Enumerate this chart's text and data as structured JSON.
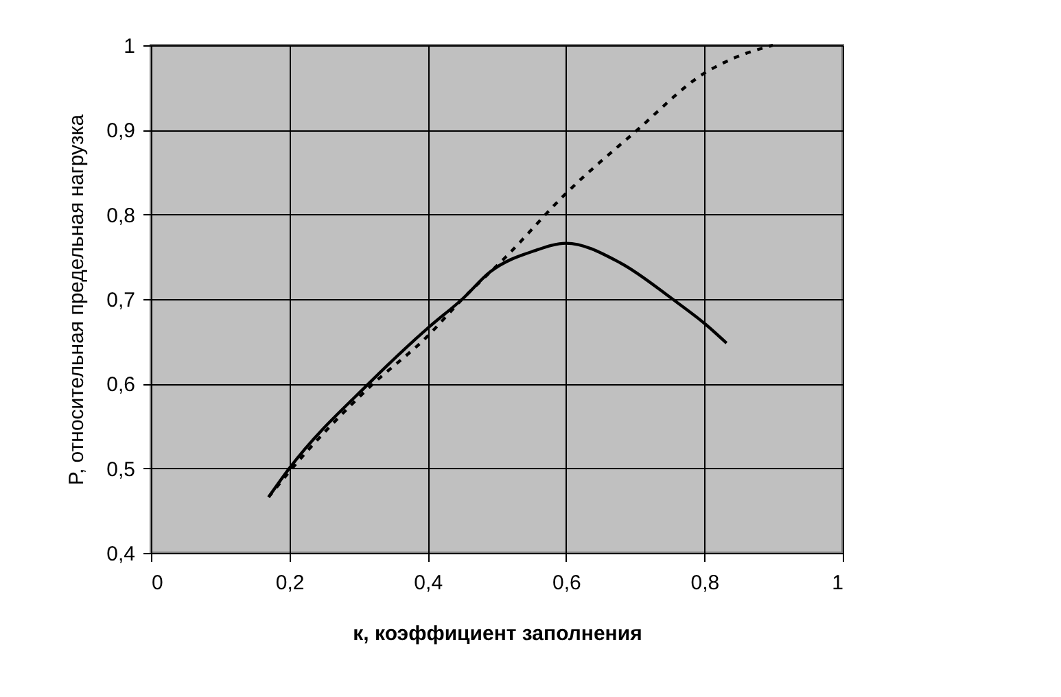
{
  "chart_data": {
    "type": "line",
    "xlabel": "к, коэффициент заполнения",
    "ylabel": "P, относительная предельная нагрузка",
    "xlim": [
      0,
      1
    ],
    "ylim": [
      0.4,
      1
    ],
    "xticks": [
      0,
      {
        "value": 0.2,
        "label": "0,2"
      },
      {
        "value": 0.4,
        "label": "0,4"
      },
      {
        "value": 0.6,
        "label": "0,6"
      },
      {
        "value": 0.8,
        "label": "0,8"
      },
      1
    ],
    "yticks": [
      {
        "value": 0.4,
        "label": "0,4"
      },
      {
        "value": 0.5,
        "label": "0,5"
      },
      {
        "value": 0.6,
        "label": "0,6"
      },
      {
        "value": 0.7,
        "label": "0,7"
      },
      {
        "value": 0.8,
        "label": "0,8"
      },
      {
        "value": 0.9,
        "label": "0,9"
      },
      1
    ],
    "grid": true,
    "marker": "none",
    "series": [
      {
        "color": "#000000",
        "line_style": "solid",
        "x": [
          0.17,
          0.2,
          0.317,
          0.402,
          0.45,
          0.49,
          0.554,
          0.6,
          0.678,
          0.754,
          0.802,
          0.832
        ],
        "values": [
          0.466,
          0.5,
          0.602,
          0.667,
          0.7,
          0.732,
          0.757,
          0.766,
          0.743,
          0.7,
          0.67,
          0.648
        ]
      },
      {
        "color": "#000000",
        "line_style": "dashed",
        "x": [
          0.17,
          0.2,
          0.312,
          0.402,
          0.45,
          0.512,
          0.6,
          0.699,
          0.802,
          0.843,
          0.899
        ],
        "values": [
          0.466,
          0.496,
          0.593,
          0.658,
          0.7,
          0.749,
          0.825,
          0.897,
          0.968,
          0.985,
          1.0
        ]
      }
    ]
  }
}
